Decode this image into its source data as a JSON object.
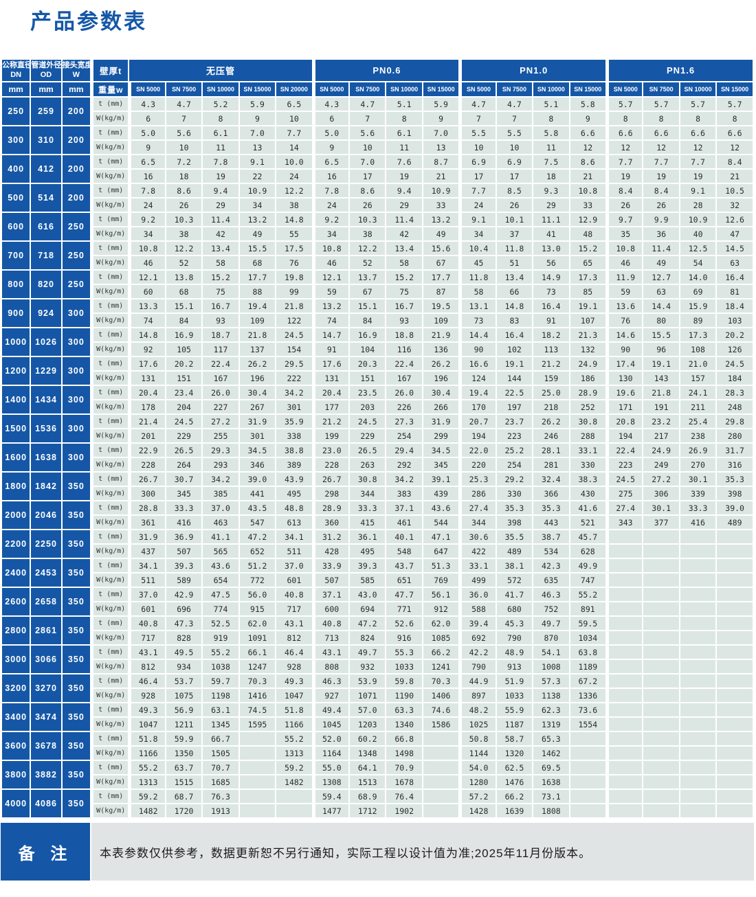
{
  "page_title": "产品参数表",
  "colors": {
    "primary_blue": "#1557a6",
    "cell_bg": "#dce7e4",
    "note_bg": "#e0e4e4",
    "title_blue": "#1b5aab"
  },
  "note": {
    "label": "备 注",
    "text": "本表参数仅供参考，数据更新恕不另行通知，实际工程以设计值为准;2025年11月份版本。"
  },
  "table": {
    "left_headers": [
      {
        "title": "公称直径",
        "sub": "DN",
        "unit": "mm"
      },
      {
        "title": "管道外径",
        "sub": "OD",
        "unit": "mm"
      },
      {
        "title": "接头宽度",
        "sub": "W",
        "unit": "mm"
      }
    ],
    "thickness_header": {
      "top": "壁厚t",
      "bottom": "重量w"
    },
    "groups": [
      {
        "label": "无压管",
        "cols": [
          "SN 5000",
          "SN 7500",
          "SN 10000",
          "SN 15000",
          "SN 20000"
        ]
      },
      {
        "label": "PN0.6",
        "cols": [
          "SN 5000",
          "SN 7500",
          "SN 10000",
          "SN 15000"
        ]
      },
      {
        "label": "PN1.0",
        "cols": [
          "SN 5000",
          "SN 7500",
          "SN 10000",
          "SN 15000"
        ]
      },
      {
        "label": "PN1.6",
        "cols": [
          "SN 5000",
          "SN 7500",
          "SN 10000",
          "SN 15000"
        ]
      }
    ],
    "row_labels": {
      "t": "t (mm)",
      "w": "W(kg/m)"
    },
    "rows": [
      {
        "dn": "250",
        "od": "259",
        "w": "200",
        "t": [
          "4.3",
          "4.7",
          "5.2",
          "5.9",
          "6.5",
          "4.3",
          "4.7",
          "5.1",
          "5.9",
          "4.7",
          "4.7",
          "5.1",
          "5.8",
          "5.7",
          "5.7",
          "5.7",
          "5.7"
        ],
        "wt": [
          "6",
          "7",
          "8",
          "9",
          "10",
          "6",
          "7",
          "8",
          "9",
          "7",
          "7",
          "8",
          "9",
          "8",
          "8",
          "8",
          "8"
        ]
      },
      {
        "dn": "300",
        "od": "310",
        "w": "200",
        "t": [
          "5.0",
          "5.6",
          "6.1",
          "7.0",
          "7.7",
          "5.0",
          "5.6",
          "6.1",
          "7.0",
          "5.5",
          "5.5",
          "5.8",
          "6.6",
          "6.6",
          "6.6",
          "6.6",
          "6.6"
        ],
        "wt": [
          "9",
          "10",
          "11",
          "13",
          "14",
          "9",
          "10",
          "11",
          "13",
          "10",
          "10",
          "11",
          "12",
          "12",
          "12",
          "12",
          "12"
        ]
      },
      {
        "dn": "400",
        "od": "412",
        "w": "200",
        "t": [
          "6.5",
          "7.2",
          "7.8",
          "9.1",
          "10.0",
          "6.5",
          "7.0",
          "7.6",
          "8.7",
          "6.9",
          "6.9",
          "7.5",
          "8.6",
          "7.7",
          "7.7",
          "7.7",
          "8.4"
        ],
        "wt": [
          "16",
          "18",
          "19",
          "22",
          "24",
          "16",
          "17",
          "19",
          "21",
          "17",
          "17",
          "18",
          "21",
          "19",
          "19",
          "19",
          "21"
        ]
      },
      {
        "dn": "500",
        "od": "514",
        "w": "200",
        "t": [
          "7.8",
          "8.6",
          "9.4",
          "10.9",
          "12.2",
          "7.8",
          "8.6",
          "9.4",
          "10.9",
          "7.7",
          "8.5",
          "9.3",
          "10.8",
          "8.4",
          "8.4",
          "9.1",
          "10.5"
        ],
        "wt": [
          "24",
          "26",
          "29",
          "34",
          "38",
          "24",
          "26",
          "29",
          "33",
          "24",
          "26",
          "29",
          "33",
          "26",
          "26",
          "28",
          "32"
        ]
      },
      {
        "dn": "600",
        "od": "616",
        "w": "250",
        "t": [
          "9.2",
          "10.3",
          "11.4",
          "13.2",
          "14.8",
          "9.2",
          "10.3",
          "11.4",
          "13.2",
          "9.1",
          "10.1",
          "11.1",
          "12.9",
          "9.7",
          "9.9",
          "10.9",
          "12.6"
        ],
        "wt": [
          "34",
          "38",
          "42",
          "49",
          "55",
          "34",
          "38",
          "42",
          "49",
          "34",
          "37",
          "41",
          "48",
          "35",
          "36",
          "40",
          "47"
        ]
      },
      {
        "dn": "700",
        "od": "718",
        "w": "250",
        "t": [
          "10.8",
          "12.2",
          "13.4",
          "15.5",
          "17.5",
          "10.8",
          "12.2",
          "13.4",
          "15.6",
          "10.4",
          "11.8",
          "13.0",
          "15.2",
          "10.8",
          "11.4",
          "12.5",
          "14.5"
        ],
        "wt": [
          "46",
          "52",
          "58",
          "68",
          "76",
          "46",
          "52",
          "58",
          "67",
          "45",
          "51",
          "56",
          "65",
          "46",
          "49",
          "54",
          "63"
        ]
      },
      {
        "dn": "800",
        "od": "820",
        "w": "250",
        "t": [
          "12.1",
          "13.8",
          "15.2",
          "17.7",
          "19.8",
          "12.1",
          "13.7",
          "15.2",
          "17.7",
          "11.8",
          "13.4",
          "14.9",
          "17.3",
          "11.9",
          "12.7",
          "14.0",
          "16.4"
        ],
        "wt": [
          "60",
          "68",
          "75",
          "88",
          "99",
          "59",
          "67",
          "75",
          "87",
          "58",
          "66",
          "73",
          "85",
          "59",
          "63",
          "69",
          "81"
        ]
      },
      {
        "dn": "900",
        "od": "924",
        "w": "300",
        "t": [
          "13.3",
          "15.1",
          "16.7",
          "19.4",
          "21.8",
          "13.2",
          "15.1",
          "16.7",
          "19.5",
          "13.1",
          "14.8",
          "16.4",
          "19.1",
          "13.6",
          "14.4",
          "15.9",
          "18.4"
        ],
        "wt": [
          "74",
          "84",
          "93",
          "109",
          "122",
          "74",
          "84",
          "93",
          "109",
          "73",
          "83",
          "91",
          "107",
          "76",
          "80",
          "89",
          "103"
        ]
      },
      {
        "dn": "1000",
        "od": "1026",
        "w": "300",
        "t": [
          "14.8",
          "16.9",
          "18.7",
          "21.8",
          "24.5",
          "14.7",
          "16.9",
          "18.8",
          "21.9",
          "14.4",
          "16.4",
          "18.2",
          "21.3",
          "14.6",
          "15.5",
          "17.3",
          "20.2"
        ],
        "wt": [
          "92",
          "105",
          "117",
          "137",
          "154",
          "91",
          "104",
          "116",
          "136",
          "90",
          "102",
          "113",
          "132",
          "90",
          "96",
          "108",
          "126"
        ]
      },
      {
        "dn": "1200",
        "od": "1229",
        "w": "300",
        "t": [
          "17.6",
          "20.2",
          "22.4",
          "26.2",
          "29.5",
          "17.6",
          "20.3",
          "22.4",
          "26.2",
          "16.6",
          "19.1",
          "21.2",
          "24.9",
          "17.4",
          "19.1",
          "21.0",
          "24.5"
        ],
        "wt": [
          "131",
          "151",
          "167",
          "196",
          "222",
          "131",
          "151",
          "167",
          "196",
          "124",
          "144",
          "159",
          "186",
          "130",
          "143",
          "157",
          "184"
        ]
      },
      {
        "dn": "1400",
        "od": "1434",
        "w": "300",
        "t": [
          "20.4",
          "23.4",
          "26.0",
          "30.4",
          "34.2",
          "20.4",
          "23.5",
          "26.0",
          "30.4",
          "19.4",
          "22.5",
          "25.0",
          "28.9",
          "19.6",
          "21.8",
          "24.1",
          "28.3"
        ],
        "wt": [
          "178",
          "204",
          "227",
          "267",
          "301",
          "177",
          "203",
          "226",
          "266",
          "170",
          "197",
          "218",
          "252",
          "171",
          "191",
          "211",
          "248"
        ]
      },
      {
        "dn": "1500",
        "od": "1536",
        "w": "300",
        "t": [
          "21.4",
          "24.5",
          "27.2",
          "31.9",
          "35.9",
          "21.2",
          "24.5",
          "27.3",
          "31.9",
          "20.7",
          "23.7",
          "26.2",
          "30.8",
          "20.8",
          "23.2",
          "25.4",
          "29.8"
        ],
        "wt": [
          "201",
          "229",
          "255",
          "301",
          "338",
          "199",
          "229",
          "254",
          "299",
          "194",
          "223",
          "246",
          "288",
          "194",
          "217",
          "238",
          "280"
        ]
      },
      {
        "dn": "1600",
        "od": "1638",
        "w": "300",
        "t": [
          "22.9",
          "26.5",
          "29.3",
          "34.5",
          "38.8",
          "23.0",
          "26.5",
          "29.4",
          "34.5",
          "22.0",
          "25.2",
          "28.1",
          "33.1",
          "22.4",
          "24.9",
          "26.9",
          "31.7"
        ],
        "wt": [
          "228",
          "264",
          "293",
          "346",
          "389",
          "228",
          "263",
          "292",
          "345",
          "220",
          "254",
          "281",
          "330",
          "223",
          "249",
          "270",
          "316"
        ]
      },
      {
        "dn": "1800",
        "od": "1842",
        "w": "350",
        "t": [
          "26.7",
          "30.7",
          "34.2",
          "39.0",
          "43.9",
          "26.7",
          "30.8",
          "34.2",
          "39.1",
          "25.3",
          "29.2",
          "32.4",
          "38.3",
          "24.5",
          "27.2",
          "30.1",
          "35.3"
        ],
        "wt": [
          "300",
          "345",
          "385",
          "441",
          "495",
          "298",
          "344",
          "383",
          "439",
          "286",
          "330",
          "366",
          "430",
          "275",
          "306",
          "339",
          "398"
        ]
      },
      {
        "dn": "2000",
        "od": "2046",
        "w": "350",
        "t": [
          "28.8",
          "33.3",
          "37.0",
          "43.5",
          "48.8",
          "28.9",
          "33.3",
          "37.1",
          "43.6",
          "27.4",
          "35.3",
          "35.3",
          "41.6",
          "27.4",
          "30.1",
          "33.3",
          "39.0"
        ],
        "wt": [
          "361",
          "416",
          "463",
          "547",
          "613",
          "360",
          "415",
          "461",
          "544",
          "344",
          "398",
          "443",
          "521",
          "343",
          "377",
          "416",
          "489"
        ]
      },
      {
        "dn": "2200",
        "od": "2250",
        "w": "350",
        "t": [
          "31.9",
          "36.9",
          "41.1",
          "47.2",
          "34.1",
          "31.2",
          "36.1",
          "40.1",
          "47.1",
          "30.6",
          "35.5",
          "38.7",
          "45.7",
          "",
          "",
          "",
          ""
        ],
        "wt": [
          "437",
          "507",
          "565",
          "652",
          "511",
          "428",
          "495",
          "548",
          "647",
          "422",
          "489",
          "534",
          "628",
          "",
          "",
          "",
          ""
        ]
      },
      {
        "dn": "2400",
        "od": "2453",
        "w": "350",
        "t": [
          "34.1",
          "39.3",
          "43.6",
          "51.2",
          "37.0",
          "33.9",
          "39.3",
          "43.7",
          "51.3",
          "33.1",
          "38.1",
          "42.3",
          "49.9",
          "",
          "",
          "",
          ""
        ],
        "wt": [
          "511",
          "589",
          "654",
          "772",
          "601",
          "507",
          "585",
          "651",
          "769",
          "499",
          "572",
          "635",
          "747",
          "",
          "",
          "",
          ""
        ]
      },
      {
        "dn": "2600",
        "od": "2658",
        "w": "350",
        "t": [
          "37.0",
          "42.9",
          "47.5",
          "56.0",
          "40.8",
          "37.1",
          "43.0",
          "47.7",
          "56.1",
          "36.0",
          "41.7",
          "46.3",
          "55.2",
          "",
          "",
          "",
          ""
        ],
        "wt": [
          "601",
          "696",
          "774",
          "915",
          "717",
          "600",
          "694",
          "771",
          "912",
          "588",
          "680",
          "752",
          "891",
          "",
          "",
          "",
          ""
        ]
      },
      {
        "dn": "2800",
        "od": "2861",
        "w": "350",
        "t": [
          "40.8",
          "47.3",
          "52.5",
          "62.0",
          "43.1",
          "40.8",
          "47.2",
          "52.6",
          "62.0",
          "39.4",
          "45.3",
          "49.7",
          "59.5",
          "",
          "",
          "",
          ""
        ],
        "wt": [
          "717",
          "828",
          "919",
          "1091",
          "812",
          "713",
          "824",
          "916",
          "1085",
          "692",
          "790",
          "870",
          "1034",
          "",
          "",
          "",
          ""
        ]
      },
      {
        "dn": "3000",
        "od": "3066",
        "w": "350",
        "t": [
          "43.1",
          "49.5",
          "55.2",
          "66.1",
          "46.4",
          "43.1",
          "49.7",
          "55.3",
          "66.2",
          "42.2",
          "48.9",
          "54.1",
          "63.8",
          "",
          "",
          "",
          ""
        ],
        "wt": [
          "812",
          "934",
          "1038",
          "1247",
          "928",
          "808",
          "932",
          "1033",
          "1241",
          "790",
          "913",
          "1008",
          "1189",
          "",
          "",
          "",
          ""
        ]
      },
      {
        "dn": "3200",
        "od": "3270",
        "w": "350",
        "t": [
          "46.4",
          "53.7",
          "59.7",
          "70.3",
          "49.3",
          "46.3",
          "53.9",
          "59.8",
          "70.3",
          "44.9",
          "51.9",
          "57.3",
          "67.2",
          "",
          "",
          "",
          ""
        ],
        "wt": [
          "928",
          "1075",
          "1198",
          "1416",
          "1047",
          "927",
          "1071",
          "1190",
          "1406",
          "897",
          "1033",
          "1138",
          "1336",
          "",
          "",
          "",
          ""
        ]
      },
      {
        "dn": "3400",
        "od": "3474",
        "w": "350",
        "t": [
          "49.3",
          "56.9",
          "63.1",
          "74.5",
          "51.8",
          "49.4",
          "57.0",
          "63.3",
          "74.6",
          "48.2",
          "55.9",
          "62.3",
          "73.6",
          "",
          "",
          "",
          ""
        ],
        "wt": [
          "1047",
          "1211",
          "1345",
          "1595",
          "1166",
          "1045",
          "1203",
          "1340",
          "1586",
          "1025",
          "1187",
          "1319",
          "1554",
          "",
          "",
          "",
          ""
        ]
      },
      {
        "dn": "3600",
        "od": "3678",
        "w": "350",
        "t": [
          "51.8",
          "59.9",
          "66.7",
          "",
          "55.2",
          "52.0",
          "60.2",
          "66.8",
          "",
          "50.8",
          "58.7",
          "65.3",
          "",
          "",
          "",
          "",
          ""
        ],
        "wt": [
          "1166",
          "1350",
          "1505",
          "",
          "1313",
          "1164",
          "1348",
          "1498",
          "",
          "1144",
          "1320",
          "1462",
          "",
          "",
          "",
          "",
          ""
        ]
      },
      {
        "dn": "3800",
        "od": "3882",
        "w": "350",
        "t": [
          "55.2",
          "63.7",
          "70.7",
          "",
          "59.2",
          "55.0",
          "64.1",
          "70.9",
          "",
          "54.0",
          "62.5",
          "69.5",
          "",
          "",
          "",
          "",
          ""
        ],
        "wt": [
          "1313",
          "1515",
          "1685",
          "",
          "1482",
          "1308",
          "1513",
          "1678",
          "",
          "1280",
          "1476",
          "1638",
          "",
          "",
          "",
          "",
          ""
        ]
      },
      {
        "dn": "4000",
        "od": "4086",
        "w": "350",
        "t": [
          "59.2",
          "68.7",
          "76.3",
          "",
          "",
          "59.4",
          "68.9",
          "76.4",
          "",
          "57.2",
          "66.2",
          "73.1",
          "",
          "",
          "",
          "",
          ""
        ],
        "wt": [
          "1482",
          "1720",
          "1913",
          "",
          "",
          "1477",
          "1712",
          "1902",
          "",
          "1428",
          "1639",
          "1808",
          "",
          "",
          "",
          "",
          ""
        ]
      }
    ]
  }
}
